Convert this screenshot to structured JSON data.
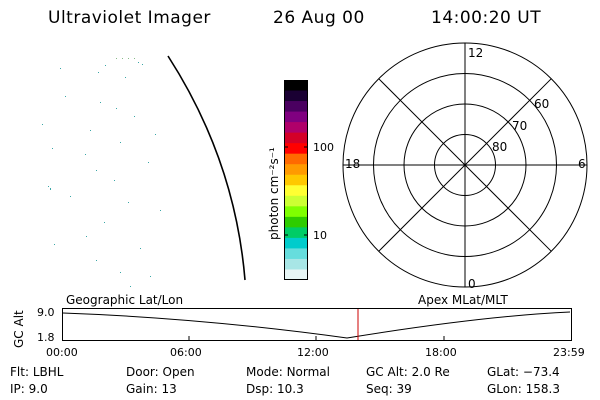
{
  "header": {
    "title": "Ultraviolet Imager",
    "date": "26 Aug 00",
    "time": "14:00:20 UT"
  },
  "colorbar": {
    "label": "photon cm⁻²s⁻¹",
    "ticks": [
      "100",
      "10"
    ],
    "colors": [
      "#000000",
      "#1a0033",
      "#4a0060",
      "#800080",
      "#b0006a",
      "#d40028",
      "#ff0000",
      "#ff6a00",
      "#ff9a00",
      "#ffc800",
      "#ffff33",
      "#ccff33",
      "#7fff00",
      "#2ecc00",
      "#00cc66",
      "#00cccc",
      "#66dddd",
      "#a8e6e6",
      "#e8f6f6"
    ]
  },
  "polar": {
    "labels": {
      "top": "12",
      "left": "18",
      "right": "6",
      "bottom": "0",
      "lat60": "60",
      "lat70": "70",
      "lat80": "80"
    }
  },
  "timeline": {
    "y_axis_label": "GC Alt",
    "y_ticks": [
      "9.0",
      "1.8"
    ],
    "left_label": "Geographic Lat/Lon",
    "right_label": "Apex MLat/MLT",
    "x_ticks": [
      "00:00",
      "06:00",
      "12:00",
      "18:00",
      "23:59"
    ],
    "marker_color": "#cc0000"
  },
  "status": {
    "row1": [
      {
        "label": "Flt:",
        "value": "LBHL"
      },
      {
        "label": "Door:",
        "value": "Open"
      },
      {
        "label": "Mode:",
        "value": "Normal"
      },
      {
        "label": "GC Alt:",
        "value": "2.0 Re"
      },
      {
        "label": "GLat:",
        "value": "−73.4"
      }
    ],
    "row2": [
      {
        "label": "IP:",
        "value": "9.0"
      },
      {
        "label": "Gain:",
        "value": "13"
      },
      {
        "label": "Dsp:",
        "value": "10.3"
      },
      {
        "label": "Seq:",
        "value": "39"
      },
      {
        "label": "GLon:",
        "value": "158.3"
      }
    ]
  }
}
